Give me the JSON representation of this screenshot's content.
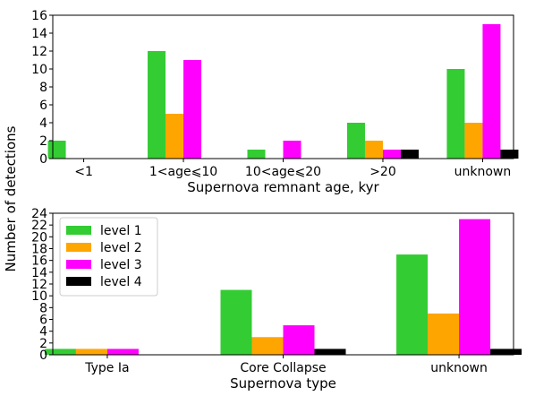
{
  "shared_ylabel": "Number of detections",
  "legend": {
    "entries": [
      {
        "label": "level 1",
        "color": "#33cc33"
      },
      {
        "label": "level 2",
        "color": "#ffa500"
      },
      {
        "label": "level 3",
        "color": "#ff00ff"
      },
      {
        "label": "level 4",
        "color": "#000000"
      }
    ],
    "placement": "upper-left of bottom panel"
  },
  "chart_data": [
    {
      "type": "bar",
      "xlabel": "Supernova remnant age, kyr",
      "categories": [
        "<1",
        "1<age⩽10",
        "10<age⩽20",
        ">20",
        "unknown"
      ],
      "ylim": [
        0,
        16
      ],
      "yticks": [
        0,
        2,
        4,
        6,
        8,
        10,
        12,
        14,
        16
      ],
      "series": [
        {
          "name": "level 1",
          "color": "#33cc33",
          "values": [
            2,
            12,
            1,
            4,
            10
          ]
        },
        {
          "name": "level 2",
          "color": "#ffa500",
          "values": [
            0,
            5,
            0,
            2,
            4
          ]
        },
        {
          "name": "level 3",
          "color": "#ff00ff",
          "values": [
            0,
            11,
            2,
            1,
            15
          ]
        },
        {
          "name": "level 4",
          "color": "#000000",
          "values": [
            0,
            0,
            0,
            1,
            1
          ]
        }
      ]
    },
    {
      "type": "bar",
      "xlabel": "Supernova type",
      "categories": [
        "Type Ia",
        "Core Collapse",
        "unknown"
      ],
      "ylim": [
        0,
        24
      ],
      "yticks": [
        0,
        2,
        4,
        6,
        8,
        10,
        12,
        14,
        16,
        18,
        20,
        22,
        24
      ],
      "series": [
        {
          "name": "level 1",
          "color": "#33cc33",
          "values": [
            1,
            11,
            17
          ]
        },
        {
          "name": "level 2",
          "color": "#ffa500",
          "values": [
            1,
            3,
            7
          ]
        },
        {
          "name": "level 3",
          "color": "#ff00ff",
          "values": [
            1,
            5,
            23
          ]
        },
        {
          "name": "level 4",
          "color": "#000000",
          "values": [
            0,
            1,
            1
          ]
        }
      ]
    }
  ]
}
